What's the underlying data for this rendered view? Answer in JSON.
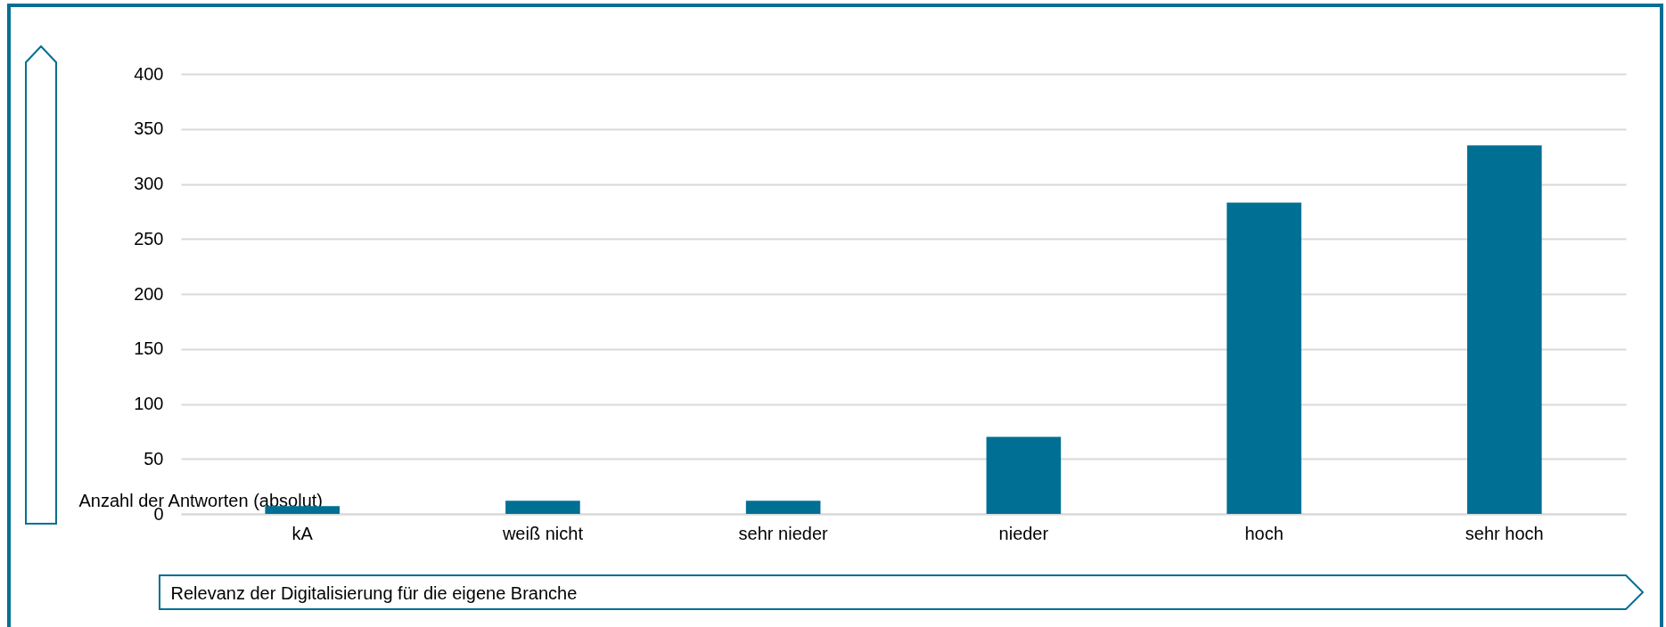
{
  "chart_data": {
    "type": "bar",
    "xlabel": "Relevanz der Digitalisierung für die eigene Branche",
    "ylabel": "Anzahl der Antworten (absolut)",
    "categories": [
      "kA",
      "weiß nicht",
      "sehr nieder",
      "nieder",
      "hoch",
      "sehr hoch"
    ],
    "values": [
      7,
      12,
      12,
      70,
      283,
      335
    ],
    "color": "#006f94",
    "ylim": [
      0,
      400
    ],
    "yticks": [
      0,
      50,
      100,
      150,
      200,
      250,
      300,
      350,
      400
    ],
    "grid": "y"
  }
}
